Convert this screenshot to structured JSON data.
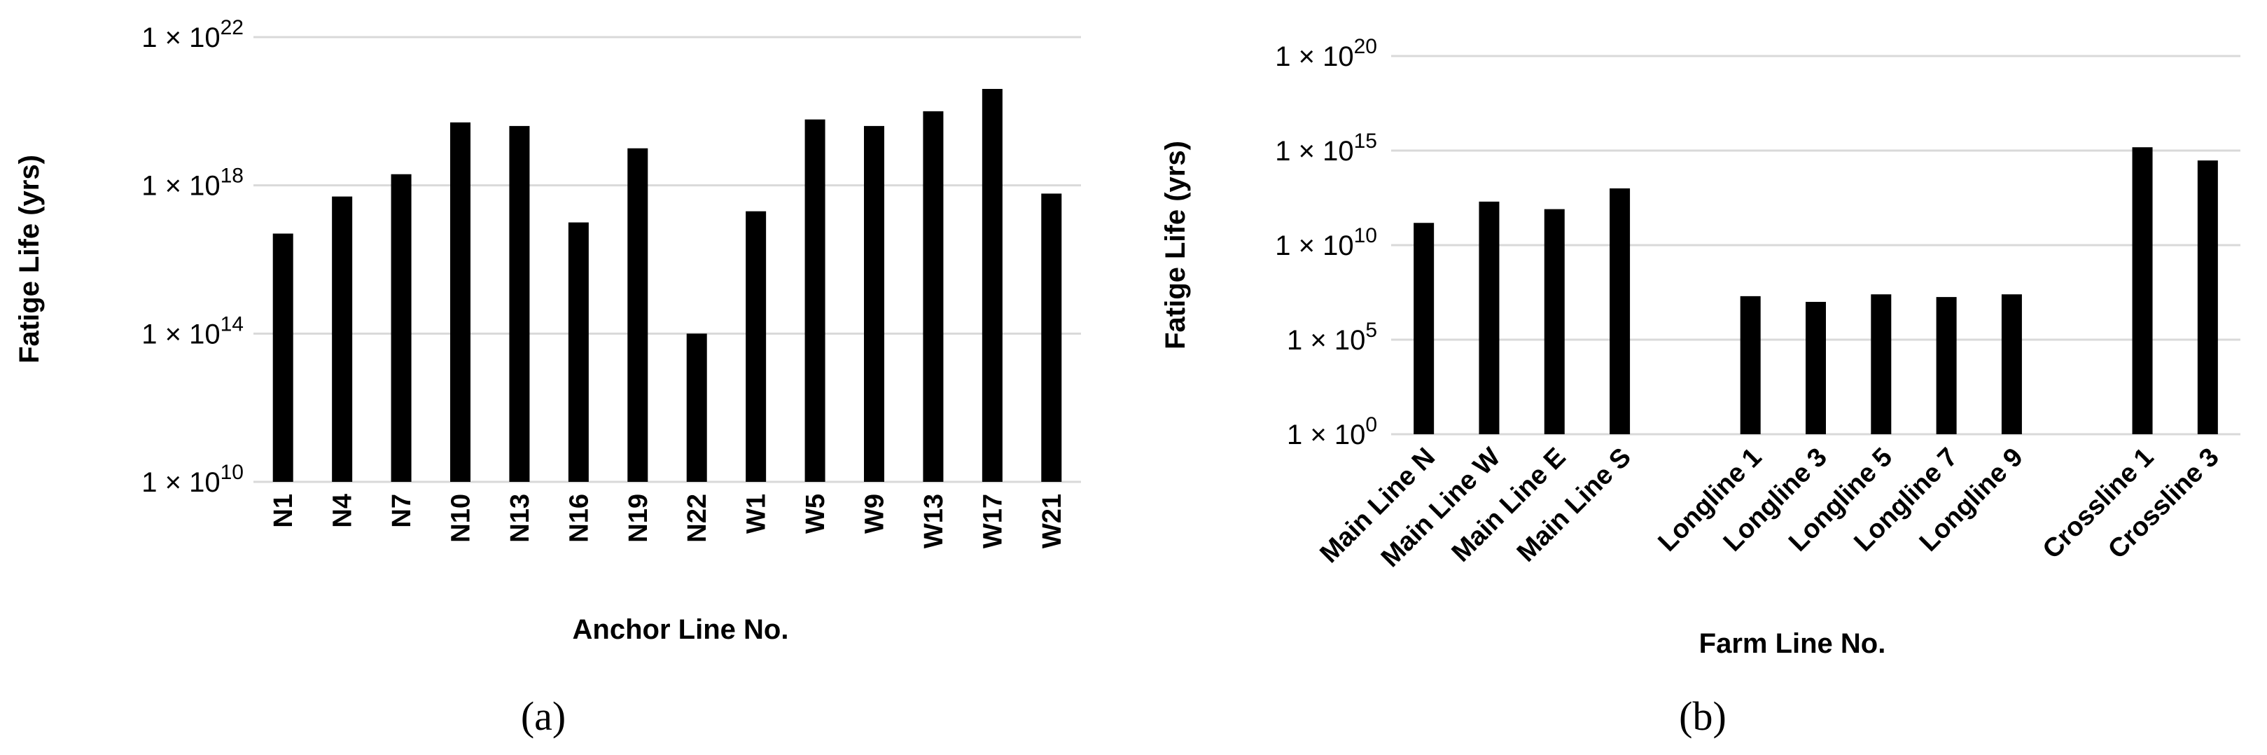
{
  "chart_data": [
    {
      "type": "bar",
      "panel_label": "(a)",
      "xlabel": "Anchor Line No.",
      "ylabel": "Fatige Life (yrs)",
      "y_scale": "log",
      "ylim": [
        10000000000.0,
        1e+22
      ],
      "yticks": [
        10000000000.0,
        100000000000000.0,
        1e+18,
        1e+22
      ],
      "ytick_labels": [
        {
          "base": "1 × 10",
          "exp": "10"
        },
        {
          "base": "1 × 10",
          "exp": "14"
        },
        {
          "base": "1 × 10",
          "exp": "18"
        },
        {
          "base": "1 × 10",
          "exp": "22"
        }
      ],
      "grid": true,
      "bar_color": "#000000",
      "categories": [
        "N1",
        "N4",
        "N7",
        "N10",
        "N13",
        "N16",
        "N19",
        "N22",
        "W1",
        "W5",
        "W9",
        "W13",
        "W17",
        "W21"
      ],
      "values": [
        5e+16,
        5e+17,
        2e+18,
        5e+19,
        4e+19,
        1e+17,
        1e+19,
        100000000000000.0,
        2e+17,
        6e+19,
        4e+19,
        1e+20,
        4e+20,
        6e+17
      ]
    },
    {
      "type": "bar",
      "panel_label": "(b)",
      "xlabel": "Farm Line No.",
      "ylabel": "Fatige Life (yrs)",
      "y_scale": "log",
      "ylim": [
        1,
        1e+20
      ],
      "yticks": [
        1,
        100000.0,
        10000000000.0,
        1000000000000000.0,
        1e+20
      ],
      "ytick_labels": [
        {
          "base": "1 × 10",
          "exp": "0"
        },
        {
          "base": "1 × 10",
          "exp": "5"
        },
        {
          "base": "1 × 10",
          "exp": "10"
        },
        {
          "base": "1 × 10",
          "exp": "15"
        },
        {
          "base": "1 × 10",
          "exp": "20"
        }
      ],
      "grid": true,
      "bar_color": "#000000",
      "categories": [
        "Main Line N",
        "Main Line W",
        "Main Line E",
        "Main Line S",
        "",
        "Longline 1",
        "Longline 3",
        "Longline 5",
        "Longline 7",
        "Longline 9",
        "",
        "Crossline 1",
        "Crossline 3"
      ],
      "values": [
        150000000000.0,
        2000000000000.0,
        800000000000.0,
        10000000000000.0,
        null,
        20000000.0,
        10000000.0,
        25000000.0,
        18000000.0,
        25000000.0,
        null,
        1500000000000000.0,
        300000000000000.0
      ]
    }
  ]
}
